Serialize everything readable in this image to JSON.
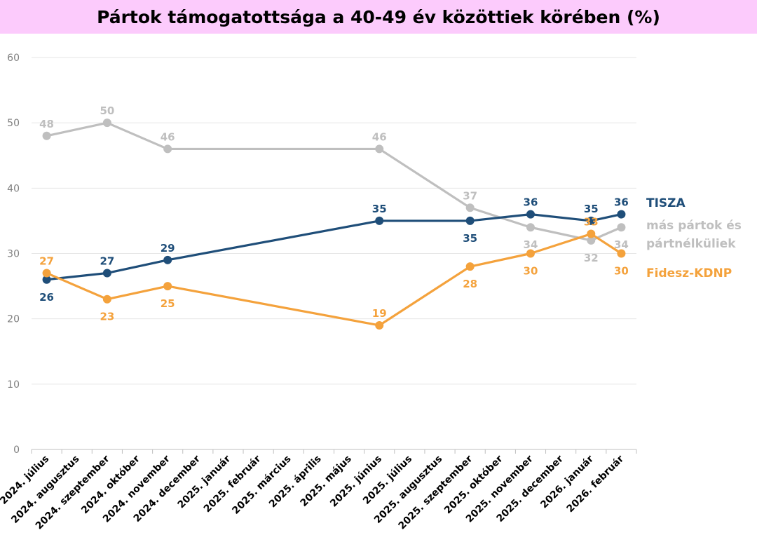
{
  "chart_data": {
    "type": "line",
    "title": "Pártok támogatottsága a 40-49 év közöttiek körében (%)",
    "xlabel": "",
    "ylabel": "",
    "ylim": [
      0,
      60
    ],
    "yticks": [
      "0",
      "10",
      "20",
      "30",
      "40",
      "50",
      "60"
    ],
    "categories": [
      "2024. július",
      "2024. augusztus",
      "2024. szeptember",
      "2024. október",
      "2024. november",
      "2024. december",
      "2025. január",
      "2025. február",
      "2025. március",
      "2025. április",
      "2025. május",
      "2025. június",
      "2025. július",
      "2025. augusztus",
      "2025. szeptember",
      "2025. október",
      "2025. november",
      "2025. december",
      "2026. január",
      "2026. február"
    ],
    "series": [
      {
        "name": "más pártok és pártnélküliek",
        "legend_lines": [
          "más pártok és",
          "pártnélküliek"
        ],
        "color": "#bfbfbf",
        "points": [
          [
            0,
            48
          ],
          [
            2,
            50
          ],
          [
            4,
            46
          ],
          [
            11,
            46
          ],
          [
            14,
            37
          ],
          [
            16,
            34
          ],
          [
            18,
            32
          ],
          [
            19,
            34
          ]
        ],
        "label_pos": [
          "above",
          "above",
          "above",
          "above",
          "above",
          "below",
          "below",
          "below"
        ]
      },
      {
        "name": "TISZA",
        "legend_lines": [
          "TISZA"
        ],
        "color": "#1f4e79",
        "points": [
          [
            0,
            26
          ],
          [
            2,
            27
          ],
          [
            4,
            29
          ],
          [
            11,
            35
          ],
          [
            14,
            35
          ],
          [
            16,
            36
          ],
          [
            18,
            35
          ],
          [
            19,
            36
          ]
        ],
        "label_pos": [
          "below",
          "above",
          "above",
          "above",
          "below",
          "above",
          "above",
          "above"
        ]
      },
      {
        "name": "Fidesz-KDNP",
        "legend_lines": [
          "Fidesz-KDNP"
        ],
        "color": "#f4a23c",
        "points": [
          [
            0,
            27
          ],
          [
            2,
            23
          ],
          [
            4,
            25
          ],
          [
            11,
            19
          ],
          [
            14,
            28
          ],
          [
            16,
            30
          ],
          [
            18,
            33
          ],
          [
            19,
            30
          ]
        ],
        "label_pos": [
          "above",
          "below",
          "below",
          "above",
          "below",
          "below",
          "above",
          "below"
        ]
      }
    ]
  }
}
